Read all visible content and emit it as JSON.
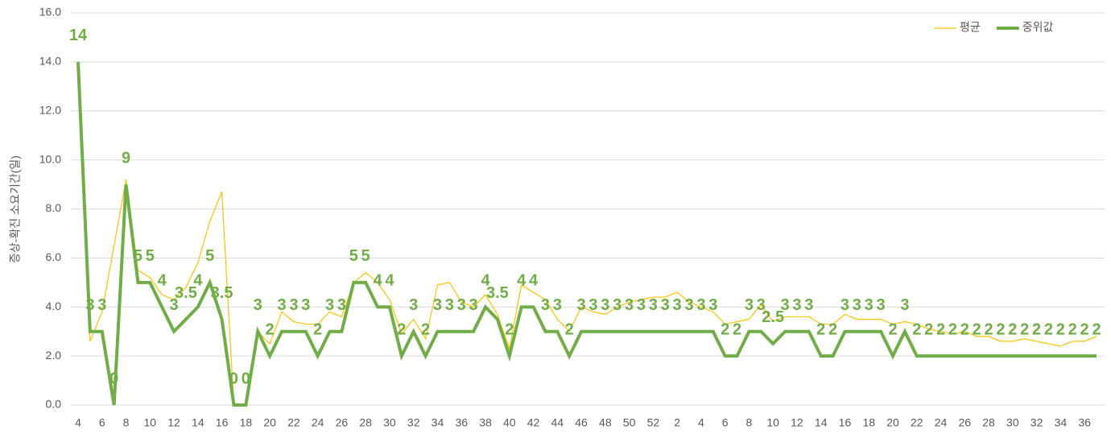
{
  "chart_data": {
    "type": "line",
    "y_label": "증상-확진 소요기간(일)",
    "categories": [
      "4",
      null,
      "6",
      null,
      "8",
      null,
      "10",
      null,
      "12",
      null,
      "14",
      null,
      "16",
      null,
      "18",
      null,
      "20",
      null,
      "22",
      null,
      "24",
      null,
      "26",
      null,
      "28",
      null,
      "30",
      null,
      "32",
      null,
      "34",
      null,
      "36",
      null,
      "38",
      null,
      "40",
      null,
      "42",
      null,
      "44",
      null,
      "46",
      null,
      "48",
      null,
      "50",
      null,
      "52",
      null,
      "2",
      null,
      "4",
      null,
      "6",
      null,
      "8",
      null,
      "10",
      null,
      "12",
      null,
      "14",
      null,
      "16",
      null,
      "18",
      null,
      "20",
      null,
      "22",
      null,
      "24",
      null,
      "26",
      null,
      "28",
      null,
      "30",
      null,
      "32",
      null,
      "34",
      null,
      "36",
      null
    ],
    "series": [
      {
        "name": "평균",
        "color": "#ffc000",
        "width": 1.2,
        "values": [
          14,
          2.6,
          3.8,
          6.5,
          9.2,
          5.5,
          5.2,
          4.5,
          4.3,
          4.8,
          5.8,
          7.5,
          8.7,
          0,
          0,
          3,
          2.5,
          3.8,
          3.4,
          3.3,
          3.3,
          3.8,
          3.6,
          5.0,
          5.4,
          5.0,
          4.3,
          2.9,
          3.5,
          2.7,
          4.9,
          5.0,
          4.2,
          4.0,
          4.5,
          3.7,
          2.3,
          4.9,
          4.6,
          4.3,
          3.5,
          3.0,
          4.0,
          3.8,
          3.7,
          4.0,
          4.2,
          4.3,
          4.4,
          4.4,
          4.6,
          4.2,
          4.0,
          3.8,
          3.3,
          3.4,
          3.5,
          4.1,
          3.4,
          3.6,
          3.6,
          3.6,
          3.3,
          3.3,
          3.7,
          3.5,
          3.5,
          3.5,
          3.3,
          3.4,
          3.3,
          3.1,
          3.0,
          2.9,
          3.0,
          2.8,
          2.8,
          2.6,
          2.6,
          2.7,
          2.6,
          2.5,
          2.4,
          2.6,
          2.6,
          2.8
        ]
      },
      {
        "name": "중위값",
        "color": "#70ad47",
        "width": 4,
        "data_labels": true,
        "values": [
          14,
          3,
          3,
          0,
          9,
          5,
          5,
          4,
          3,
          3.5,
          4,
          5,
          3.5,
          0,
          0,
          3,
          2,
          3,
          3,
          3,
          2,
          3,
          3,
          5,
          5,
          4,
          4,
          2,
          3,
          2,
          3,
          3,
          3,
          3,
          4,
          3.5,
          2,
          4,
          4,
          3,
          3,
          2,
          3,
          3,
          3,
          3,
          3,
          3,
          3,
          3,
          3,
          3,
          3,
          3,
          2,
          2,
          3,
          3,
          2.5,
          3,
          3,
          3,
          2,
          2,
          3,
          3,
          3,
          3,
          2,
          3,
          2,
          2,
          2,
          2,
          2,
          2,
          2,
          2,
          2,
          2,
          2,
          2,
          2,
          2,
          2,
          2
        ]
      }
    ],
    "ylim": [
      0,
      16
    ],
    "yticks": [
      {
        "value": 0,
        "label": "0.0"
      },
      {
        "value": 2,
        "label": "2.0"
      },
      {
        "value": 4,
        "label": "4.0"
      },
      {
        "value": 6,
        "label": "6.0"
      },
      {
        "value": 8,
        "label": "8.0"
      },
      {
        "value": 10,
        "label": "10.0"
      },
      {
        "value": 12,
        "label": "12.0"
      },
      {
        "value": 14,
        "label": "14.0"
      },
      {
        "value": 16,
        "label": "16.0"
      }
    ],
    "grid": true,
    "legend": "top-right"
  }
}
